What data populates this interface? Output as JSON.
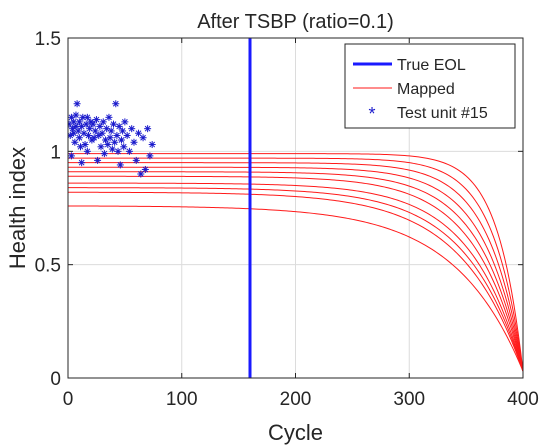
{
  "chart_data": {
    "type": "line",
    "title": "After TSBP (ratio=0.1)",
    "xlabel": "Cycle",
    "ylabel": "Health index",
    "xlim": [
      0,
      400
    ],
    "ylim": [
      0,
      1.5
    ],
    "xticks": [
      0,
      100,
      200,
      300,
      400
    ],
    "xtick_labels": [
      "0",
      "100",
      "200",
      "300",
      "400"
    ],
    "yticks": [
      0,
      0.5,
      1,
      1.5
    ],
    "ytick_labels": [
      "0",
      "0.5",
      "1",
      "1.5"
    ],
    "grid": true,
    "legend_position": "top-right",
    "legend": [
      "True EOL",
      "Mapped",
      "Test unit #15"
    ],
    "colors": {
      "true_eol": "#1a1aff",
      "mapped": "#ff1a1a",
      "test_unit": "#1a1acc"
    },
    "true_eol_x": 160,
    "mapped": {
      "x_end": 400,
      "end_value": 0.03,
      "curves": [
        {
          "plateau": 0.99,
          "knee": 345,
          "scale": 22
        },
        {
          "plateau": 0.97,
          "knee": 340,
          "scale": 26
        },
        {
          "plateau": 0.95,
          "knee": 335,
          "scale": 30
        },
        {
          "plateau": 0.93,
          "knee": 325,
          "scale": 34
        },
        {
          "plateau": 0.91,
          "knee": 320,
          "scale": 38
        },
        {
          "plateau": 0.89,
          "knee": 312,
          "scale": 42
        },
        {
          "plateau": 0.86,
          "knee": 305,
          "scale": 46
        },
        {
          "plateau": 0.84,
          "knee": 297,
          "scale": 50
        },
        {
          "plateau": 0.82,
          "knee": 290,
          "scale": 54
        },
        {
          "plateau": 0.76,
          "knee": 280,
          "scale": 60
        }
      ]
    },
    "test_unit": {
      "x": [
        1,
        2,
        3,
        3,
        4,
        5,
        5,
        6,
        7,
        7,
        8,
        9,
        10,
        10,
        11,
        12,
        12,
        13,
        14,
        15,
        16,
        17,
        17,
        18,
        19,
        20,
        21,
        22,
        23,
        24,
        25,
        26,
        27,
        28,
        29,
        30,
        31,
        32,
        33,
        34,
        35,
        36,
        37,
        38,
        39,
        40,
        41,
        42,
        43,
        44,
        45,
        46,
        47,
        48,
        49,
        50,
        52,
        54,
        56,
        58,
        60,
        62,
        64,
        66,
        68,
        70,
        72,
        74
      ],
      "y": [
        1.12,
        1.07,
        1.15,
        0.98,
        1.1,
        1.08,
        1.13,
        1.04,
        1.11,
        1.16,
        1.21,
        1.09,
        1.06,
        1.13,
        1.02,
        1.11,
        0.95,
        1.15,
        1.08,
        1.03,
        1.12,
        1.0,
        1.15,
        1.07,
        1.1,
        1.13,
        1.05,
        1.12,
        1.06,
        1.09,
        1.14,
        0.96,
        1.07,
        1.11,
        1.02,
        1.08,
        1.13,
        0.99,
        1.05,
        1.1,
        1.03,
        1.15,
        1.06,
        1.09,
        1.01,
        1.12,
        1.04,
        1.21,
        1.07,
        1.0,
        1.11,
        0.94,
        1.05,
        1.09,
        1.02,
        1.13,
        1.07,
        1.0,
        1.1,
        1.04,
        0.96,
        1.08,
        0.9,
        1.06,
        0.92,
        1.1,
        0.98,
        1.03
      ]
    }
  }
}
